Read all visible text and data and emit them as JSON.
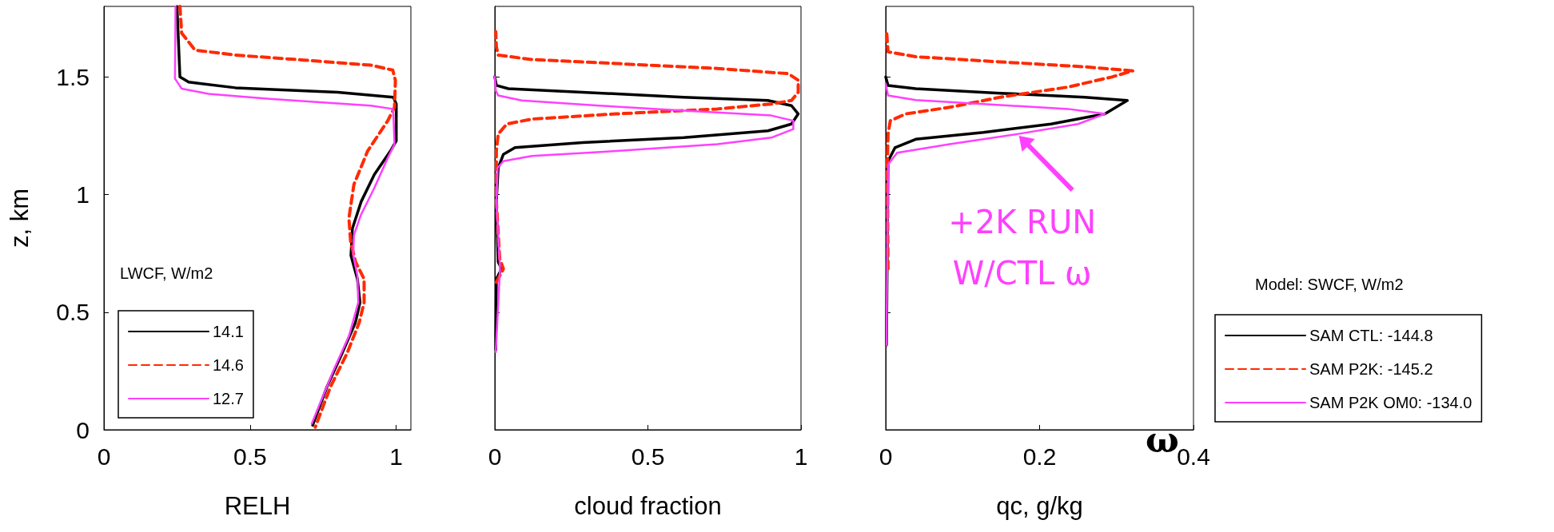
{
  "chart_data": [
    {
      "type": "line",
      "xlabel": "RELH",
      "ylabel": "z, km",
      "xlim": [
        0,
        1.05
      ],
      "xticks": [
        0,
        0.5,
        1
      ],
      "ylim": [
        0,
        1.8
      ],
      "yticks": [
        0,
        0.5,
        1,
        1.5
      ],
      "legend": "bottom left",
      "legend_title": "LWCF, W/m2",
      "marker": "none",
      "series": [
        {
          "name": "14.1",
          "color": "#000000",
          "line_style": "solid",
          "x": [
            0.25,
            0.26,
            0.29,
            0.45,
            0.8,
            0.99,
            1.0,
            1.0,
            0.98,
            0.925,
            0.88,
            0.85,
            0.845,
            0.867,
            0.876,
            0.86,
            0.815,
            0.763,
            0.714
          ],
          "values": [
            1.8,
            1.5,
            1.478,
            1.454,
            1.435,
            1.414,
            1.385,
            1.228,
            1.185,
            1.085,
            0.97,
            0.856,
            0.741,
            0.641,
            0.541,
            0.455,
            0.326,
            0.183,
            0.019
          ]
        },
        {
          "name": "14.6",
          "color": "#ff2a00",
          "line_style": "dashed",
          "x": [
            0.26,
            0.266,
            0.312,
            0.45,
            0.682,
            0.913,
            0.988,
            0.997,
            0.994,
            0.971,
            0.902,
            0.855,
            0.838,
            0.844,
            0.861,
            0.89,
            0.89,
            0.873,
            0.832,
            0.775,
            0.723
          ],
          "values": [
            1.8,
            1.686,
            1.614,
            1.593,
            1.572,
            1.55,
            1.529,
            1.486,
            1.371,
            1.314,
            1.185,
            1.042,
            0.899,
            0.799,
            0.713,
            0.641,
            0.541,
            0.455,
            0.326,
            0.183,
            0.011
          ]
        },
        {
          "name": "12.7",
          "color": "#ff40ff",
          "line_style": "solid",
          "x": [
            0.245,
            0.243,
            0.266,
            0.358,
            0.566,
            0.913,
            0.988,
            0.99,
            0.994,
            0.971,
            0.925,
            0.879,
            0.855,
            0.853,
            0.867,
            0.87,
            0.838,
            0.786,
            0.711
          ],
          "values": [
            1.8,
            1.493,
            1.45,
            1.428,
            1.407,
            1.378,
            1.364,
            1.343,
            1.214,
            1.156,
            1.028,
            0.913,
            0.827,
            0.741,
            0.656,
            0.541,
            0.398,
            0.255,
            0.026
          ]
        }
      ]
    },
    {
      "type": "line",
      "xlabel": "cloud fraction",
      "xlim": [
        0,
        1
      ],
      "xticks": [
        0,
        0.5,
        1
      ],
      "ylim": [
        0,
        1.8
      ],
      "yticks": [
        0,
        0.5,
        1,
        1.5
      ],
      "tick_labels": "x",
      "marker": "none",
      "series": [
        {
          "color": "#000000",
          "line_style": "solid",
          "x": [
            0.003,
            0.005,
            0.022,
            0.011,
            0.005,
            0.011,
            0.028,
            0.066,
            0.286,
            0.617,
            0.892,
            0.969,
            0.991,
            0.969,
            0.892,
            0.617,
            0.286,
            0.044,
            0.005,
            0
          ],
          "values": [
            0.34,
            0.641,
            0.684,
            0.713,
            0.97,
            1.113,
            1.171,
            1.2,
            1.221,
            1.242,
            1.271,
            1.3,
            1.343,
            1.378,
            1.4,
            1.414,
            1.435,
            1.45,
            1.464,
            1.5
          ]
        },
        {
          "color": "#ff2a00",
          "line_style": "dashed",
          "x": [
            0.005,
            0.028,
            0.016,
            0.005,
            0.005,
            0.011,
            0.039,
            0.121,
            0.396,
            0.727,
            0.903,
            0.969,
            0.991,
            0.991,
            0.958,
            0.727,
            0.396,
            0.121,
            0.011,
            0.005,
            0.003
          ],
          "values": [
            0.627,
            0.684,
            0.727,
            0.97,
            1.185,
            1.257,
            1.3,
            1.321,
            1.343,
            1.364,
            1.385,
            1.4,
            1.435,
            1.486,
            1.514,
            1.536,
            1.557,
            1.574,
            1.593,
            1.629,
            1.693
          ]
        },
        {
          "color": "#ff40ff",
          "line_style": "solid",
          "x": [
            0.003,
            0.017,
            0.005,
            0.009,
            0.028,
            0.121,
            0.396,
            0.727,
            0.903,
            0.975,
            0.975,
            0.903,
            0.617,
            0.341,
            0.088,
            0.011,
            0.003,
            0
          ],
          "values": [
            0.33,
            0.684,
            0.97,
            1.113,
            1.142,
            1.164,
            1.185,
            1.214,
            1.242,
            1.278,
            1.314,
            1.336,
            1.357,
            1.378,
            1.4,
            1.421,
            1.442,
            1.5
          ]
        }
      ]
    },
    {
      "type": "line",
      "xlabel": "qc, g/kg",
      "xlim": [
        0,
        0.4
      ],
      "xticks": [
        0,
        0.2,
        0.4
      ],
      "ylim": [
        0,
        1.8
      ],
      "yticks": [
        0,
        0.5,
        1,
        1.5
      ],
      "tick_labels": "x",
      "legend": "right",
      "legend_title": "Model: SWCF, W/m2",
      "marker": "none",
      "annotations": [
        {
          "text": "+2K RUN\nW/CTL ω",
          "x": 0.17,
          "y": 1.26
        },
        "ω"
      ],
      "series": [
        {
          "name": "SAM CTL: -144.8",
          "color": "#000000",
          "line_style": "solid",
          "x": [
            0.001,
            0.003,
            0.012,
            0.039,
            0.127,
            0.215,
            0.285,
            0.314,
            0.259,
            0.149,
            0.039,
            0.003,
            0
          ],
          "values": [
            0.36,
            1.142,
            1.199,
            1.235,
            1.264,
            1.3,
            1.343,
            1.4,
            1.414,
            1.431,
            1.45,
            1.464,
            1.5
          ]
        },
        {
          "name": "SAM P2K: -145.2",
          "color": "#ff2a00",
          "line_style": "dashed",
          "x": [
            0.003,
            0.002,
            0.003,
            0.006,
            0.026,
            0.083,
            0.149,
            0.237,
            0.294,
            0.321,
            0.259,
            0.149,
            0.039,
            0.003,
            0.001
          ],
          "values": [
            0.684,
            1.113,
            1.257,
            1.314,
            1.343,
            1.371,
            1.414,
            1.457,
            1.5,
            1.526,
            1.543,
            1.564,
            1.586,
            1.607,
            1.7
          ]
        },
        {
          "name": "SAM P2K OM0: -134.0",
          "color": "#ff40ff",
          "line_style": "solid",
          "x": [
            0.001,
            0.003,
            0.015,
            0.083,
            0.171,
            0.25,
            0.285,
            0.237,
            0.127,
            0.039,
            0.003,
            0
          ],
          "values": [
            0.36,
            1.128,
            1.178,
            1.214,
            1.257,
            1.3,
            1.343,
            1.364,
            1.385,
            1.402,
            1.421,
            1.471
          ]
        }
      ]
    }
  ]
}
